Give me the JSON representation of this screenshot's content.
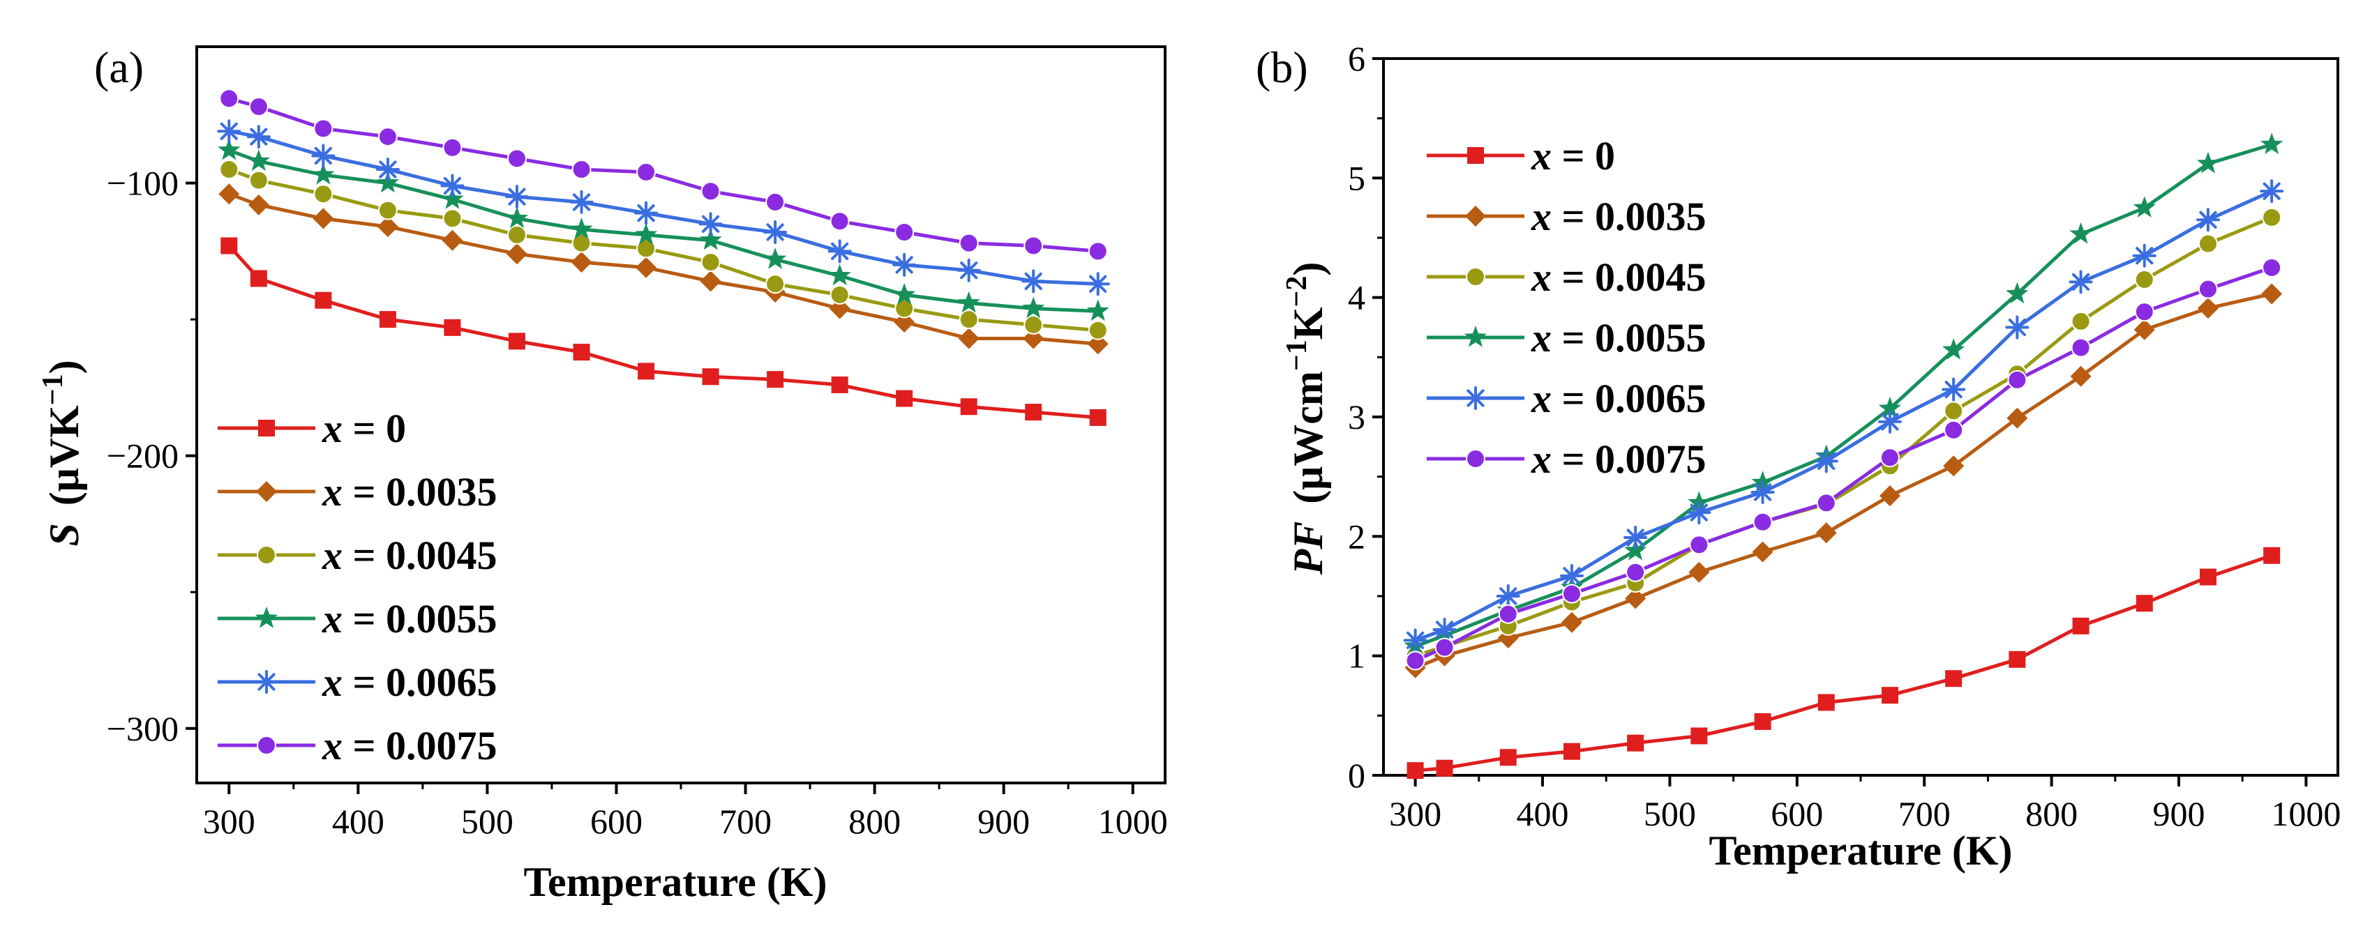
{
  "chart_data": [
    {
      "panel_label": "(a)",
      "type": "line",
      "xlabel": "Temperature (K)",
      "ylabel_var": "S",
      "ylabel_open": "(μVK",
      "ylabel_exp": "−1",
      "ylabel_close": ")",
      "xlim": [
        275,
        1025
      ],
      "ylim": [
        -320,
        -50
      ],
      "xticks": [
        300,
        400,
        500,
        600,
        700,
        800,
        900,
        1000
      ],
      "yticks": [
        -100,
        -200,
        -300
      ],
      "ytick_labels": [
        "−100",
        "−200",
        "−300"
      ],
      "legend_loc": "lower-left",
      "x": [
        300,
        323,
        373,
        423,
        473,
        523,
        573,
        623,
        673,
        723,
        773,
        823,
        873,
        923,
        973
      ],
      "series": [
        {
          "name": "x = 0",
          "var": "x",
          "rest": " = 0",
          "color": "#e01e1e",
          "marker": "square",
          "values": [
            -123,
            -135,
            -143,
            -150,
            -153,
            -158,
            -162,
            -169,
            -171,
            -172,
            -174,
            -179,
            -182,
            -184,
            -186
          ]
        },
        {
          "name": "x = 0.0035",
          "var": "x",
          "rest": " = 0.0035",
          "color": "#b85c12",
          "marker": "diamond",
          "values": [
            -104,
            -108,
            -113,
            -116,
            -121,
            -126,
            -129,
            -131,
            -136,
            -140,
            -146,
            -151,
            -157,
            -157,
            -159
          ]
        },
        {
          "name": "x = 0.0045",
          "var": "x",
          "rest": " = 0.0045",
          "color": "#9a9a12",
          "marker": "circle",
          "values": [
            -95,
            -99,
            -104,
            -110,
            -113,
            -119,
            -122,
            -124,
            -129,
            -137,
            -141,
            -146,
            -150,
            -152,
            -154
          ]
        },
        {
          "name": "x = 0.0055",
          "var": "x",
          "rest": " = 0.0055",
          "color": "#16905a",
          "marker": "star",
          "values": [
            -88,
            -92,
            -97,
            -100,
            -106,
            -113,
            -117,
            -119,
            -121,
            -128,
            -134,
            -141,
            -144,
            -146,
            -147
          ]
        },
        {
          "name": "x = 0.0065",
          "var": "x",
          "rest": " = 0.0065",
          "color": "#3a6ee0",
          "marker": "asterisk",
          "values": [
            -81,
            -83,
            -90,
            -95,
            -101,
            -105,
            -107,
            -111,
            -115,
            -118,
            -125,
            -130,
            -132,
            -136,
            -137
          ]
        },
        {
          "name": "x = 0.0075",
          "var": "x",
          "rest": " = 0.0075",
          "color": "#8a2be2",
          "marker": "circle",
          "values": [
            -69,
            -72,
            -80,
            -83,
            -87,
            -91,
            -95,
            -96,
            -103,
            -107,
            -114,
            -118,
            -122,
            -123,
            -125
          ]
        }
      ]
    },
    {
      "panel_label": "(b)",
      "type": "line",
      "xlabel": "Temperature (K)",
      "ylabel_var": "PF",
      "ylabel_open": "(μWcm",
      "ylabel_exp": "−1",
      "ylabel_mid": "K",
      "ylabel_exp2": "−2",
      "ylabel_close": ")",
      "xlim": [
        275,
        1025
      ],
      "ylim": [
        0,
        6
      ],
      "xticks": [
        300,
        400,
        500,
        600,
        700,
        800,
        900,
        1000
      ],
      "yticks": [
        0,
        1,
        2,
        3,
        4,
        5,
        6
      ],
      "ytick_labels": [
        "0",
        "1",
        "2",
        "3",
        "4",
        "5",
        "6"
      ],
      "legend_loc": "top-left",
      "x": [
        300,
        323,
        373,
        423,
        473,
        523,
        573,
        623,
        673,
        723,
        773,
        823,
        873,
        923,
        973
      ],
      "series": [
        {
          "name": "x = 0",
          "var": "x",
          "rest": " = 0",
          "color": "#e01e1e",
          "marker": "square",
          "values": [
            0.04,
            0.06,
            0.15,
            0.2,
            0.27,
            0.33,
            0.45,
            0.61,
            0.67,
            0.81,
            0.97,
            1.25,
            1.44,
            1.66,
            1.84
          ]
        },
        {
          "name": "x = 0.0035",
          "var": "x",
          "rest": " = 0.0035",
          "color": "#b85c12",
          "marker": "diamond",
          "values": [
            0.9,
            1.0,
            1.15,
            1.28,
            1.48,
            1.7,
            1.87,
            2.03,
            2.34,
            2.59,
            2.99,
            3.34,
            3.73,
            3.91,
            4.03
          ]
        },
        {
          "name": "x = 0.0045",
          "var": "x",
          "rest": " = 0.0045",
          "color": "#9a9a12",
          "marker": "circle",
          "values": [
            1.0,
            1.08,
            1.25,
            1.45,
            1.61,
            1.93,
            2.12,
            2.27,
            2.59,
            3.05,
            3.36,
            3.8,
            4.15,
            4.45,
            4.67
          ]
        },
        {
          "name": "x = 0.0055",
          "var": "x",
          "rest": " = 0.0055",
          "color": "#16905a",
          "marker": "star",
          "values": [
            1.08,
            1.17,
            1.38,
            1.57,
            1.88,
            2.28,
            2.45,
            2.67,
            3.07,
            3.56,
            4.03,
            4.53,
            4.75,
            5.12,
            5.28
          ]
        },
        {
          "name": "x = 0.0065",
          "var": "x",
          "rest": " = 0.0065",
          "color": "#3a6ee0",
          "marker": "asterisk",
          "values": [
            1.13,
            1.22,
            1.5,
            1.67,
            1.99,
            2.2,
            2.37,
            2.63,
            2.96,
            3.23,
            3.75,
            4.13,
            4.35,
            4.65,
            4.89
          ]
        },
        {
          "name": "x = 0.0075",
          "var": "x",
          "rest": " = 0.0075",
          "color": "#8a2be2",
          "marker": "circle",
          "values": [
            0.96,
            1.07,
            1.35,
            1.52,
            1.7,
            1.93,
            2.12,
            2.28,
            2.66,
            2.89,
            3.31,
            3.58,
            3.88,
            4.07,
            4.25
          ]
        }
      ]
    }
  ]
}
